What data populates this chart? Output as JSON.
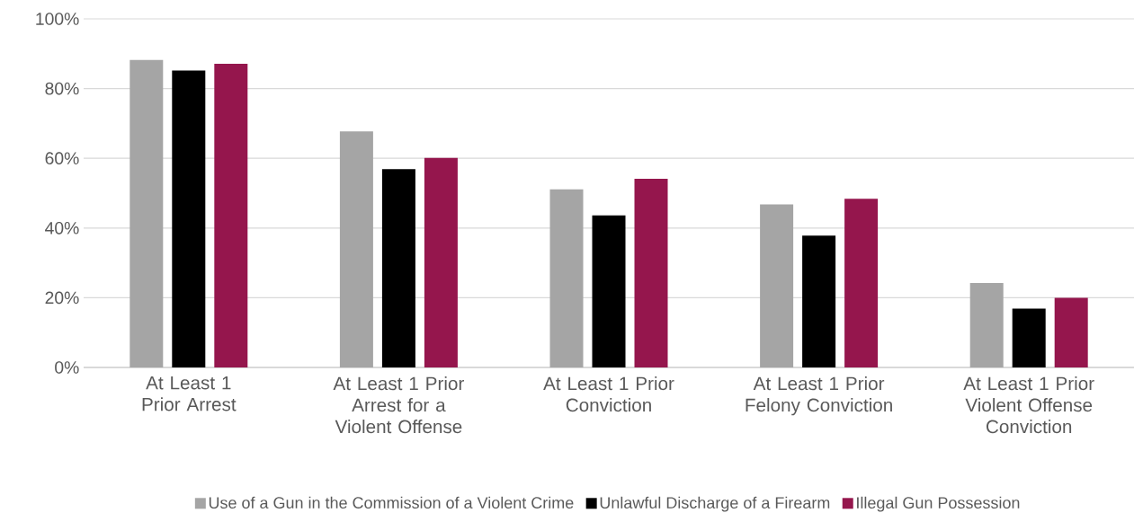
{
  "chart_data": {
    "type": "bar",
    "categories": [
      "At Least 1 Prior Arrest",
      "At Least 1 Prior Arrest for a Violent Offense",
      "At Least 1 Prior Conviction",
      "At Least 1 Prior Felony Conviction",
      "At Least 1 Prior Violent Offense Conviction"
    ],
    "series": [
      {
        "name": "Use of a Gun in the Commission of a Violent Crime",
        "color": "#a5a5a5",
        "values": [
          88.2,
          67.7,
          51.1,
          46.8,
          24.2
        ]
      },
      {
        "name": "Unlawful Discharge of a Firearm",
        "color": "#000000",
        "values": [
          85.2,
          56.9,
          43.6,
          37.8,
          16.9
        ]
      },
      {
        "name": "Illegal Gun Possession",
        "color": "#95164d",
        "values": [
          87.1,
          60.1,
          54.1,
          48.4,
          20.0
        ]
      }
    ],
    "ylim": [
      0,
      100
    ],
    "yticks": [
      {
        "value": 0,
        "label": "0%"
      },
      {
        "value": 20,
        "label": "20%"
      },
      {
        "value": 40,
        "label": "40%"
      },
      {
        "value": 60,
        "label": "60%"
      },
      {
        "value": 80,
        "label": "80%"
      },
      {
        "value": 100,
        "label": "100%"
      }
    ],
    "grid": "y",
    "legend": "bottom"
  }
}
